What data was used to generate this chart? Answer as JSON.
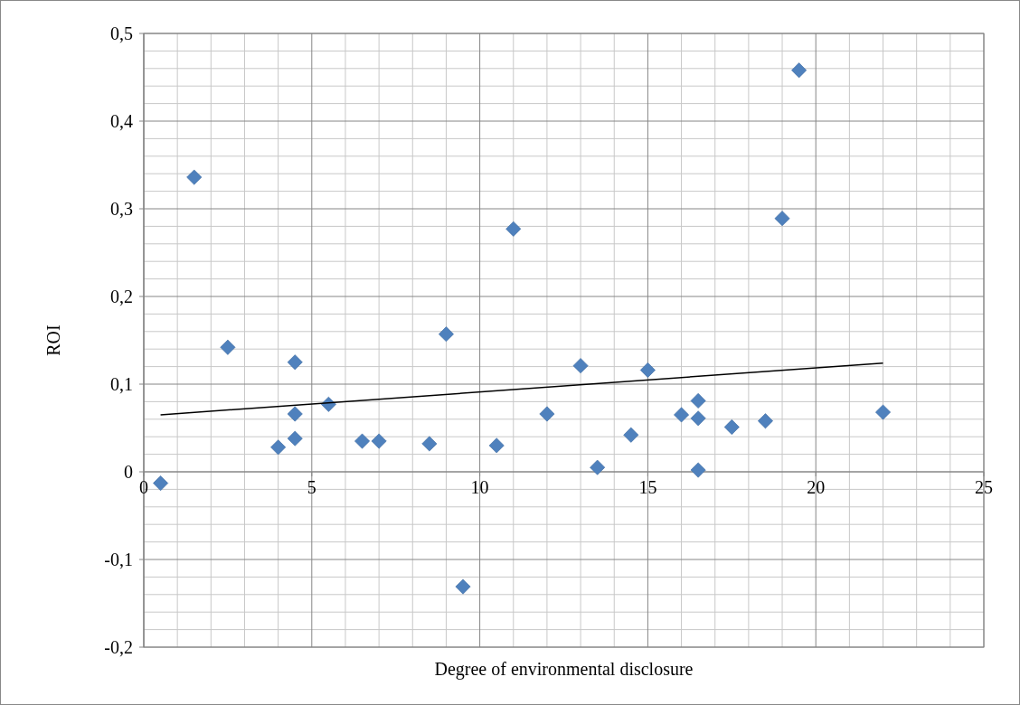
{
  "chart_data": {
    "type": "scatter",
    "xlabel": "Degree of environmental disclosure",
    "ylabel": "ROI",
    "xlim": [
      0,
      25
    ],
    "xticks": [
      0,
      5,
      10,
      15,
      20,
      25
    ],
    "ylim": [
      -0.2,
      0.5
    ],
    "yticks": [
      {
        "value": -0.2,
        "label": "-0,2"
      },
      {
        "value": -0.1,
        "label": "-0,1"
      },
      {
        "value": 0,
        "label": "0"
      },
      {
        "value": 0.1,
        "label": "0,1"
      },
      {
        "value": 0.2,
        "label": "0,2"
      },
      {
        "value": 0.3,
        "label": "0,3"
      },
      {
        "value": 0.4,
        "label": "0,4"
      },
      {
        "value": 0.5,
        "label": "0,5"
      }
    ],
    "grid": true,
    "series": [
      {
        "marker": "diamond",
        "color": "#4f81bd",
        "x": [
          0.5,
          1.5,
          2.5,
          4,
          4.5,
          4.5,
          4.5,
          5.5,
          6.5,
          7,
          8.5,
          9,
          9.5,
          10.5,
          11,
          12,
          13,
          13.5,
          14.5,
          15,
          16,
          16.5,
          16.5,
          16.5,
          17.5,
          18.5,
          19,
          19.5,
          22
        ],
        "values": [
          -0.013,
          0.336,
          0.142,
          0.028,
          0.125,
          0.066,
          0.038,
          0.077,
          0.035,
          0.035,
          0.032,
          0.157,
          -0.131,
          0.03,
          0.277,
          0.066,
          0.121,
          0.005,
          0.042,
          0.116,
          0.065,
          0.081,
          0.061,
          0.002,
          0.051,
          0.058,
          0.289,
          0.458,
          0.068
        ]
      },
      {
        "type": "line",
        "color": "#000000",
        "x": [
          0.5,
          22
        ],
        "values": [
          0.065,
          0.124
        ]
      }
    ]
  }
}
